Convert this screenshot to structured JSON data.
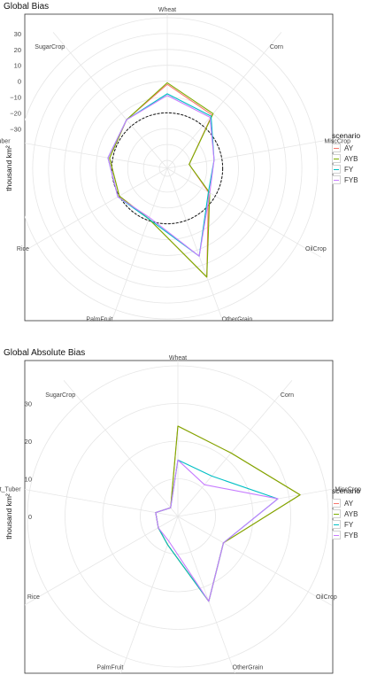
{
  "colors": {
    "AY": "#F8766D",
    "AYB": "#7CAE00",
    "FY": "#00BFC4",
    "FYB": "#C77CFF"
  },
  "legend": {
    "title": "scenario",
    "items": [
      "AY",
      "AYB",
      "FY",
      "FYB"
    ]
  },
  "chart_data": [
    {
      "type": "radar",
      "title": "Global Bias",
      "ylabel": "thousand km²",
      "categories": [
        "Wheat",
        "Corn",
        "MiscCrop",
        "OilCrop",
        "OtherGrain",
        "PalmFruit",
        "Rice",
        "Root_Tuber",
        "SugarCrop"
      ],
      "rlim": [
        -55,
        40
      ],
      "rticks": [
        30,
        20,
        10,
        0,
        -10,
        -20,
        -30
      ],
      "rtick_labels": [
        "30",
        "20",
        "10",
        "0",
        "−10",
        "−20",
        "−30"
      ],
      "reference_circle_r": -20,
      "series": [
        {
          "name": "AY",
          "values": [
            -2,
            -11,
            -41,
            -25,
            18,
            -21,
            -20,
            -18,
            -15
          ]
        },
        {
          "name": "AYB",
          "values": [
            -1,
            -10,
            -41,
            -24,
            18,
            -21,
            -20,
            -18,
            -15
          ]
        },
        {
          "name": "FY",
          "values": [
            -8,
            -12,
            -25,
            -25,
            4,
            -21,
            -19,
            -17,
            -15
          ]
        },
        {
          "name": "FYB",
          "values": [
            -9,
            -13,
            -25,
            -24,
            4,
            -22,
            -19,
            -17,
            -15
          ]
        }
      ]
    },
    {
      "type": "radar",
      "title": "Global Absolute Bias",
      "ylabel": "thousand km²",
      "categories": [
        "Wheat",
        "Corn",
        "MiscCrop",
        "OilCrop",
        "OtherGrain",
        "PalmFruit",
        "Rice",
        "Root_Tuber",
        "SugarCrop"
      ],
      "rlim": [
        0,
        40
      ],
      "rticks": [
        30,
        20,
        10,
        0
      ],
      "rtick_labels": [
        "30",
        "20",
        "10",
        "0"
      ],
      "series": [
        {
          "name": "AY",
          "values": [
            24,
            22,
            33,
            14,
            24,
            8,
            6,
            6,
            3
          ]
        },
        {
          "name": "AYB",
          "values": [
            24,
            22,
            33,
            14,
            24,
            8,
            6,
            6,
            3
          ]
        },
        {
          "name": "FY",
          "values": [
            15,
            14,
            27,
            14,
            24,
            8,
            6,
            6,
            3
          ]
        },
        {
          "name": "FYB",
          "values": [
            15,
            11,
            27,
            14,
            24,
            7,
            6,
            6,
            3
          ]
        }
      ]
    }
  ]
}
